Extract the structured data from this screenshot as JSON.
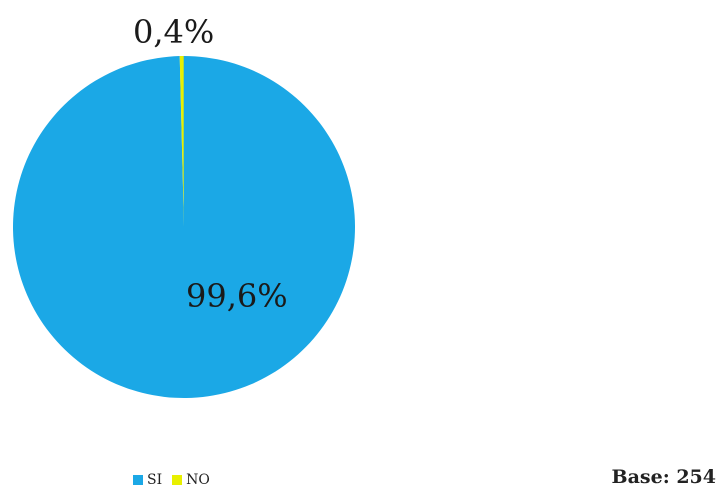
{
  "chart_data": {
    "type": "pie",
    "categories": [
      "SI",
      "NO"
    ],
    "values": [
      99.6,
      0.4
    ],
    "labels": [
      "99,6%",
      "0,4%"
    ],
    "colors": [
      "#1BA8E6",
      "#E8F000"
    ],
    "start": "12 o'clock",
    "direction": "clockwise",
    "legend_placement": "bottom-left"
  },
  "legend": {
    "items": [
      {
        "label": "SI",
        "color": "#1BA8E6"
      },
      {
        "label": "NO",
        "color": "#E8F000"
      }
    ]
  },
  "base_note": "Base: 254"
}
